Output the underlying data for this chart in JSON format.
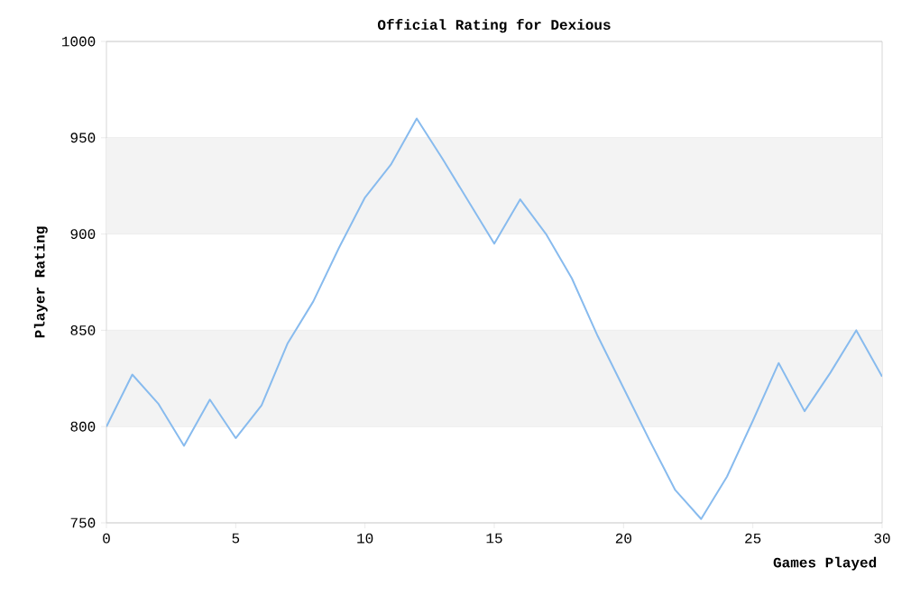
{
  "chart_data": {
    "type": "line",
    "title": "Official Rating for Dexious",
    "xlabel": "Games Played",
    "ylabel": "Player Rating",
    "x": [
      0,
      1,
      2,
      3,
      4,
      5,
      6,
      7,
      8,
      9,
      10,
      11,
      12,
      13,
      14,
      15,
      16,
      17,
      18,
      19,
      20,
      21,
      22,
      23,
      24,
      25,
      26,
      27,
      28,
      29,
      30
    ],
    "values": [
      800,
      827,
      812,
      790,
      814,
      794,
      811,
      843,
      865,
      893,
      919,
      936,
      960,
      939,
      917,
      895,
      918,
      900,
      877,
      847,
      820,
      793,
      767,
      752,
      774,
      803,
      833,
      808,
      828,
      850,
      826
    ],
    "color": "#88bbee",
    "xlim": [
      0,
      30
    ],
    "xticks": [
      0,
      5,
      10,
      15,
      20,
      25,
      30
    ],
    "ylim": [
      750,
      1000
    ],
    "yticks": [
      750,
      800,
      850,
      900,
      950,
      1000
    ],
    "grid": "y",
    "marker": "none",
    "line_style": "solid",
    "bands": [
      {
        "axis": "y",
        "from": 800,
        "to": 850,
        "color": "#f3f3f3"
      },
      {
        "axis": "y",
        "from": 900,
        "to": 950,
        "color": "#f3f3f3"
      }
    ]
  }
}
